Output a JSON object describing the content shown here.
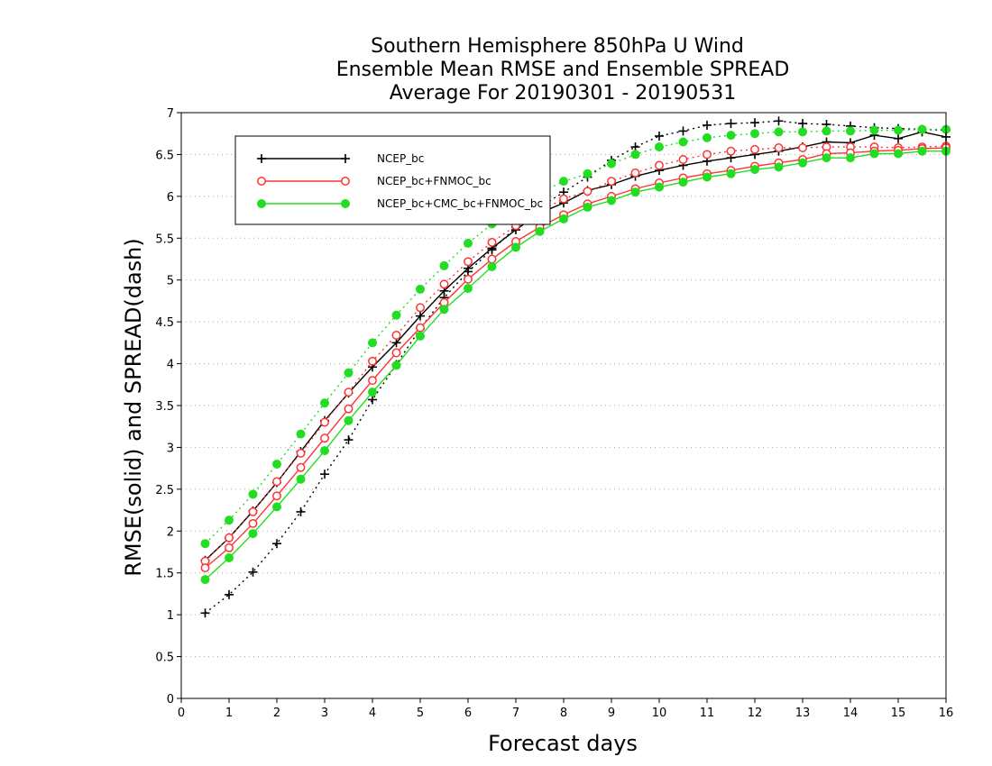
{
  "chart_data": {
    "type": "line",
    "title_lines": [
      "Southern Hemisphere 850hPa U Wind",
      "Ensemble Mean RMSE and Ensemble SPREAD",
      "Average For 20190301 - 20190531"
    ],
    "xlabel": "Forecast days",
    "ylabel": "RMSE(solid) and SPREAD(dash)",
    "xlim": [
      0,
      16
    ],
    "ylim": [
      0,
      7
    ],
    "xticks": [
      "0",
      "1",
      "2",
      "3",
      "4",
      "5",
      "6",
      "7",
      "8",
      "9",
      "10",
      "11",
      "12",
      "13",
      "14",
      "15",
      "16"
    ],
    "yticks": [
      "0",
      "0.5",
      "1",
      "1.5",
      "2",
      "2.5",
      "3",
      "3.5",
      "4",
      "4.5",
      "5",
      "5.5",
      "6",
      "6.5",
      "7"
    ],
    "grid": "horizontal dotted",
    "legend_position": "top-left",
    "x": [
      0.5,
      1,
      1.5,
      2,
      2.5,
      3,
      3.5,
      4,
      4.5,
      5,
      5.5,
      6,
      6.5,
      7,
      7.5,
      8,
      8.5,
      9,
      9.5,
      10,
      10.5,
      11,
      11.5,
      12,
      12.5,
      13,
      13.5,
      14,
      14.5,
      15,
      15.5,
      16
    ],
    "series": [
      {
        "name": "NCEP_bc",
        "color": "#000000",
        "marker": "plus",
        "rmse": [
          1.65,
          1.92,
          2.24,
          2.58,
          2.95,
          3.32,
          3.65,
          3.96,
          4.25,
          4.57,
          4.87,
          5.14,
          5.38,
          5.6,
          5.8,
          5.92,
          6.07,
          6.14,
          6.24,
          6.31,
          6.37,
          6.42,
          6.46,
          6.5,
          6.54,
          6.59,
          6.65,
          6.64,
          6.73,
          6.69,
          6.77,
          6.71
        ],
        "spread": [
          1.02,
          1.24,
          1.51,
          1.85,
          2.23,
          2.68,
          3.09,
          3.57,
          3.99,
          4.42,
          4.79,
          5.1,
          5.36,
          5.63,
          5.87,
          6.05,
          6.23,
          6.43,
          6.59,
          6.72,
          6.78,
          6.85,
          6.87,
          6.88,
          6.9,
          6.87,
          6.86,
          6.84,
          6.82,
          6.81,
          6.8,
          6.79
        ]
      },
      {
        "name": "NCEP_bc+FNMOC_bc",
        "color": "#ff3333",
        "marker": "open-circle",
        "rmse": [
          1.56,
          1.8,
          2.09,
          2.42,
          2.76,
          3.11,
          3.46,
          3.8,
          4.13,
          4.43,
          4.73,
          5.01,
          5.25,
          5.46,
          5.63,
          5.78,
          5.91,
          6.0,
          6.09,
          6.16,
          6.22,
          6.27,
          6.31,
          6.36,
          6.4,
          6.44,
          6.51,
          6.52,
          6.54,
          6.55,
          6.57,
          6.58
        ],
        "spread": [
          1.64,
          1.92,
          2.23,
          2.59,
          2.93,
          3.3,
          3.66,
          4.03,
          4.34,
          4.67,
          4.95,
          5.22,
          5.45,
          5.65,
          5.82,
          5.97,
          6.06,
          6.18,
          6.28,
          6.37,
          6.44,
          6.5,
          6.54,
          6.56,
          6.58,
          6.58,
          6.59,
          6.59,
          6.59,
          6.58,
          6.59,
          6.6
        ]
      },
      {
        "name": "NCEP_bc+CMC_bc+FNMOC_bc",
        "color": "#22dd22",
        "marker": "filled-circle",
        "rmse": [
          1.42,
          1.68,
          1.97,
          2.29,
          2.62,
          2.96,
          3.32,
          3.66,
          3.98,
          4.33,
          4.65,
          4.9,
          5.16,
          5.39,
          5.58,
          5.73,
          5.87,
          5.95,
          6.05,
          6.11,
          6.17,
          6.23,
          6.27,
          6.32,
          6.35,
          6.4,
          6.46,
          6.46,
          6.51,
          6.51,
          6.54,
          6.54
        ],
        "spread": [
          1.85,
          2.13,
          2.44,
          2.8,
          3.16,
          3.53,
          3.89,
          4.25,
          4.58,
          4.89,
          5.17,
          5.44,
          5.67,
          5.87,
          6.04,
          6.18,
          6.27,
          6.39,
          6.5,
          6.59,
          6.65,
          6.7,
          6.73,
          6.75,
          6.77,
          6.77,
          6.78,
          6.78,
          6.79,
          6.79,
          6.8,
          6.8
        ]
      }
    ]
  }
}
